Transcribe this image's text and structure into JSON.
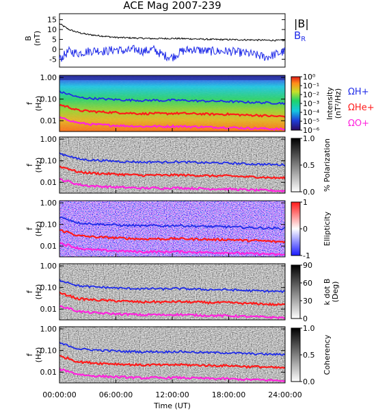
{
  "chart_data": [
    {
      "type": "line",
      "title": "ACE Mag 2007-239",
      "ylabel": "B",
      "yunit": "(nT)",
      "ylim": [
        -9,
        18
      ],
      "yticks": [
        "15",
        "10",
        "5",
        "0",
        "-5"
      ],
      "series": [
        {
          "name": "|B|",
          "color": "#000000",
          "x": [
            0,
            1,
            2,
            3,
            4,
            5,
            6,
            8,
            10,
            12,
            14,
            16,
            18,
            20,
            22,
            24
          ],
          "y": [
            13,
            10,
            8.5,
            7.5,
            7,
            6.5,
            6,
            5.7,
            5.4,
            5.5,
            5.3,
            5.0,
            4.9,
            4.8,
            4.6,
            4.5
          ]
        },
        {
          "name": "BR",
          "color": "#1f2be8",
          "x": [
            0,
            1,
            2,
            3,
            4,
            5,
            6,
            7,
            8,
            9,
            10,
            11,
            12,
            13,
            14,
            16,
            18,
            20,
            22,
            24
          ],
          "y": [
            -5,
            -1,
            -2,
            -1,
            -0.5,
            -1,
            0,
            -1,
            0,
            -1,
            0,
            -3,
            -4,
            -1,
            0,
            -1,
            -1,
            -2,
            -4,
            -1
          ]
        }
      ]
    },
    {
      "type": "heatmap",
      "ylabel": "f",
      "yunit": "(Hz)",
      "yticks": [
        "1.00",
        "0.10",
        "0.01"
      ],
      "colorbar": {
        "label": "Intensity",
        "unit": "(nT²/Hz)",
        "ticks": [
          "10⁰",
          "10⁻¹",
          "10⁻²",
          "10⁻³",
          "10⁻⁴",
          "10⁻⁵",
          "10⁻⁶"
        ]
      },
      "legend": [
        {
          "name": "ΩH+",
          "color": "#1f2be8"
        },
        {
          "name": "ΩHe+",
          "color": "#ff1a1a"
        },
        {
          "name": "ΩO+",
          "color": "#ff22dd"
        }
      ]
    },
    {
      "type": "heatmap",
      "ylabel": "f",
      "yunit": "(Hz)",
      "yticks": [
        "1.00",
        "0.10",
        "0.01"
      ],
      "colorbar": {
        "label": "% Polarization",
        "ticks": [
          "1.0",
          "0.5",
          "0.0"
        ]
      }
    },
    {
      "type": "heatmap",
      "ylabel": "f",
      "yunit": "(Hz)",
      "yticks": [
        "1.00",
        "0.10",
        "0.01"
      ],
      "colorbar": {
        "label": "Ellipticity",
        "ticks": [
          "1",
          "0",
          "-1"
        ]
      }
    },
    {
      "type": "heatmap",
      "ylabel": "f",
      "yunit": "(Hz)",
      "yticks": [
        "1.00",
        "0.10",
        "0.01"
      ],
      "colorbar": {
        "label": "k dot B",
        "unit": "(Deg)",
        "ticks": [
          "90",
          "60",
          "30",
          "0"
        ]
      }
    },
    {
      "type": "heatmap",
      "ylabel": "f",
      "yunit": "(Hz)",
      "yticks": [
        "1.00",
        "0.10",
        "0.01"
      ],
      "colorbar": {
        "label": "Coherency",
        "ticks": [
          "1.0",
          "0.5",
          "0.0"
        ]
      },
      "xlabel": "Time (UT)",
      "xticks": [
        "00:00:00",
        "06:00:00",
        "12:00:00",
        "18:00:00",
        "24:00:00"
      ],
      "xlim": [
        0,
        24
      ]
    }
  ],
  "gyro_curves": {
    "x": [
      0,
      0.5,
      1,
      1.5,
      2,
      3,
      4,
      5,
      6,
      7,
      8,
      9,
      10,
      11,
      12,
      13,
      14,
      15,
      16,
      17,
      18,
      19,
      20,
      21,
      22,
      23,
      24
    ],
    "H": [
      0.22,
      0.19,
      0.17,
      0.14,
      0.12,
      0.11,
      0.105,
      0.1,
      0.095,
      0.09,
      0.09,
      0.085,
      0.09,
      0.085,
      0.09,
      0.088,
      0.085,
      0.082,
      0.08,
      0.08,
      0.078,
      0.075,
      0.072,
      0.07,
      0.068,
      0.066,
      0.065
    ],
    "He": [
      0.055,
      0.048,
      0.043,
      0.035,
      0.03,
      0.028,
      0.026,
      0.025,
      0.024,
      0.023,
      0.022,
      0.021,
      0.022,
      0.021,
      0.022,
      0.022,
      0.021,
      0.021,
      0.02,
      0.02,
      0.02,
      0.019,
      0.018,
      0.018,
      0.017,
      0.016,
      0.016
    ],
    "O": [
      0.014,
      0.012,
      0.011,
      0.009,
      0.008,
      0.007,
      0.0066,
      0.0063,
      0.006,
      0.0058,
      0.0056,
      0.0053,
      0.0056,
      0.0053,
      0.0056,
      0.0055,
      0.0053,
      0.0052,
      0.005,
      0.005,
      0.0049,
      0.0047,
      0.0045,
      0.0044,
      0.0043,
      0.0041,
      0.004
    ]
  }
}
